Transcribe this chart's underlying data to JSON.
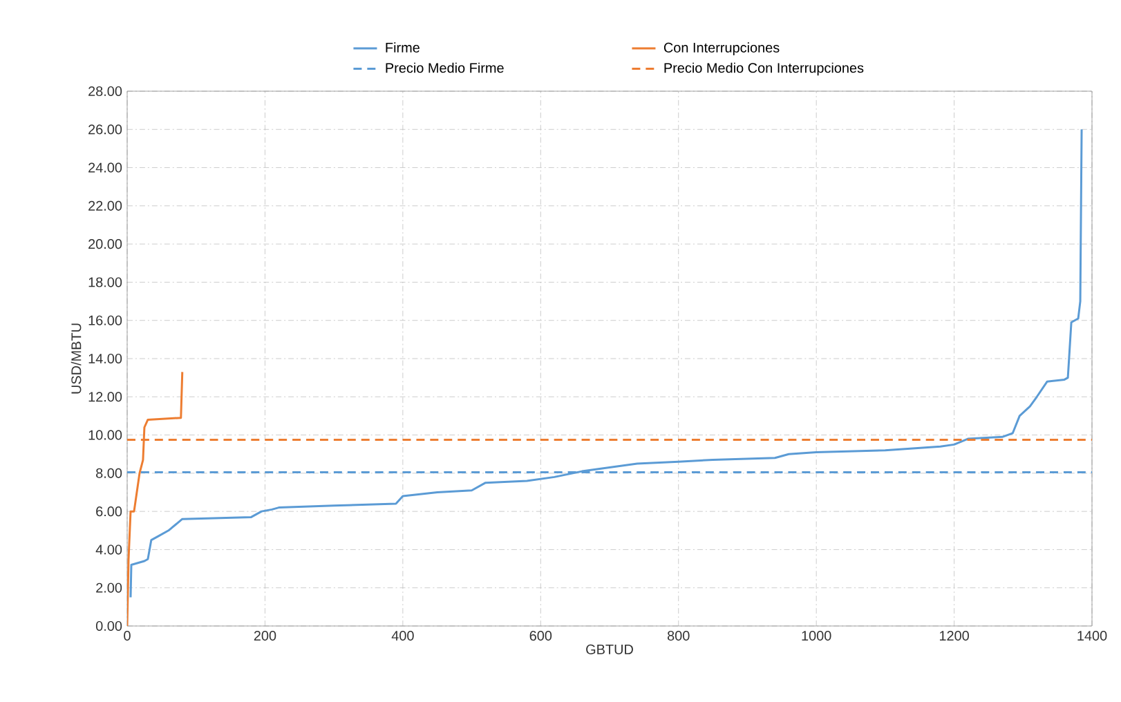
{
  "chart_data": {
    "type": "line",
    "xlabel": "GBTUD",
    "ylabel": "USD/MBTU",
    "xlim": [
      0,
      1400
    ],
    "xticks": [
      0,
      200,
      400,
      600,
      800,
      1000,
      1200,
      1400
    ],
    "ylim": [
      0,
      28
    ],
    "yticks": [
      {
        "value": 0,
        "label": "0.00"
      },
      {
        "value": 2,
        "label": "2.00"
      },
      {
        "value": 4,
        "label": "4.00"
      },
      {
        "value": 6,
        "label": "6.00"
      },
      {
        "value": 8,
        "label": "8.00"
      },
      {
        "value": 10,
        "label": "10.00"
      },
      {
        "value": 12,
        "label": "12.00"
      },
      {
        "value": 14,
        "label": "14.00"
      },
      {
        "value": 16,
        "label": "16.00"
      },
      {
        "value": 18,
        "label": "18.00"
      },
      {
        "value": 20,
        "label": "20.00"
      },
      {
        "value": 22,
        "label": "22.00"
      },
      {
        "value": 24,
        "label": "24.00"
      },
      {
        "value": 26,
        "label": "26.00"
      },
      {
        "value": 28,
        "label": "28.00"
      }
    ],
    "grid": true,
    "legend": "top",
    "marker": "none",
    "line_style": "solid",
    "series": [
      {
        "name": "Firme",
        "color": "#5b9bd5",
        "x": [
          5,
          6,
          25,
          30,
          35,
          45,
          60,
          70,
          80,
          180,
          195,
          210,
          220,
          300,
          390,
          400,
          450,
          500,
          520,
          580,
          620,
          660,
          700,
          740,
          800,
          850,
          940,
          960,
          1000,
          1100,
          1180,
          1200,
          1220,
          1270,
          1285,
          1295,
          1310,
          1320,
          1335,
          1360,
          1365,
          1370,
          1380,
          1383,
          1385
        ],
        "values": [
          1.5,
          3.2,
          3.4,
          3.5,
          4.5,
          4.7,
          5.0,
          5.3,
          5.6,
          5.7,
          6.0,
          6.1,
          6.2,
          6.3,
          6.4,
          6.8,
          7.0,
          7.1,
          7.5,
          7.6,
          7.8,
          8.1,
          8.3,
          8.5,
          8.6,
          8.7,
          8.8,
          9.0,
          9.1,
          9.2,
          9.4,
          9.5,
          9.8,
          9.9,
          10.1,
          11.0,
          11.5,
          12.0,
          12.8,
          12.9,
          13.0,
          15.9,
          16.1,
          17.0,
          26.0
        ]
      },
      {
        "name": "Con Interrupciones",
        "color": "#ed7d31",
        "x": [
          0,
          2,
          5,
          10,
          14,
          18,
          23,
          25,
          30,
          78,
          80
        ],
        "values": [
          0,
          3.5,
          6.0,
          6.0,
          7.0,
          8.0,
          8.7,
          10.4,
          10.8,
          10.9,
          13.3
        ]
      }
    ],
    "ref_lines": [
      {
        "axis": "y",
        "value": 8.05,
        "label": "Precio Medio Firme",
        "color": "#5b9bd5",
        "line_style": "dashed"
      },
      {
        "axis": "y",
        "value": 9.75,
        "label": "Precio Medio Con Interrupciones",
        "color": "#ed7d31",
        "line_style": "dashed"
      }
    ]
  }
}
